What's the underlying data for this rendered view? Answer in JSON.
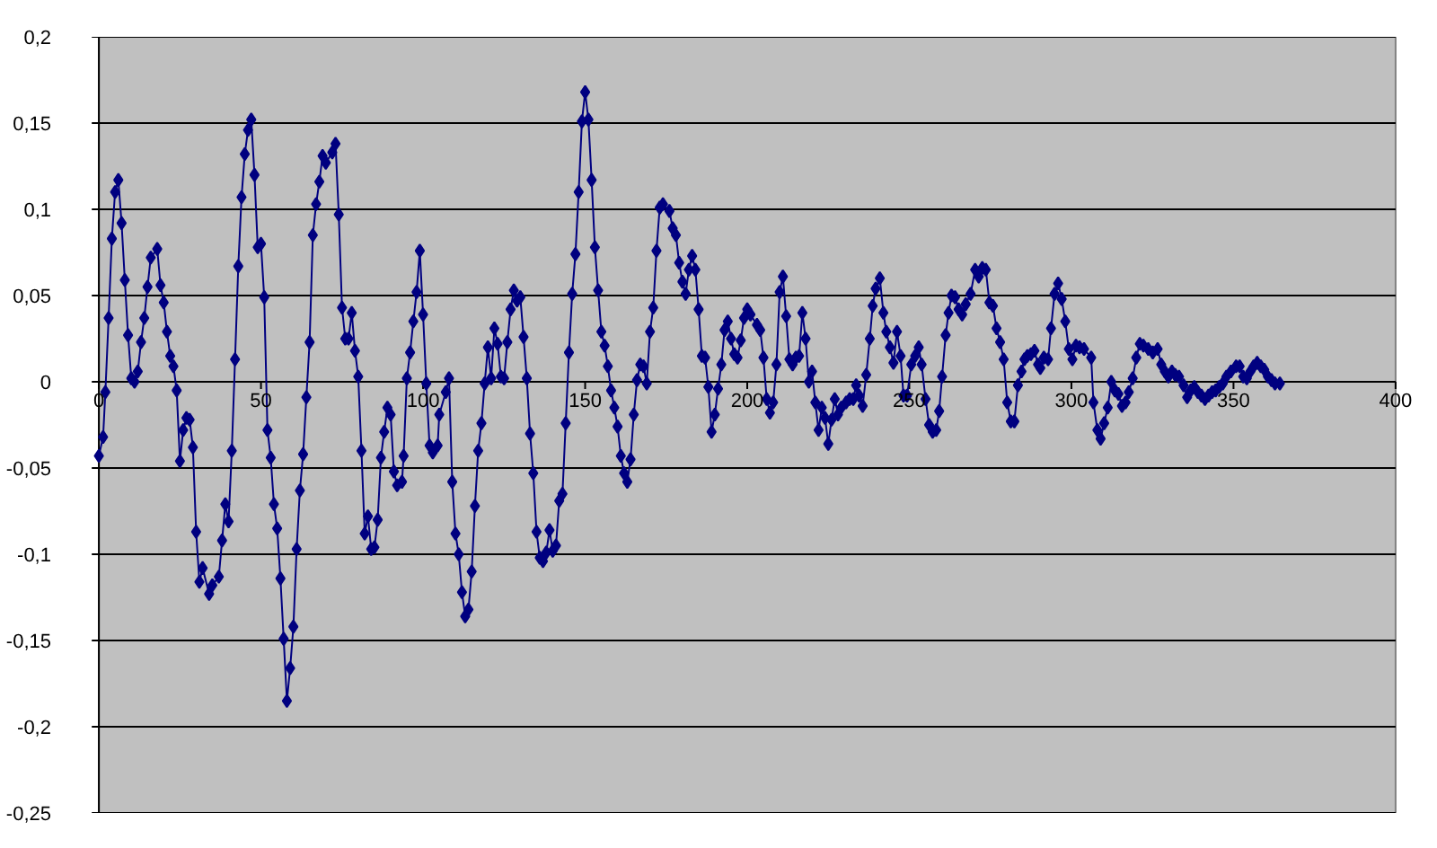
{
  "chart_data": {
    "type": "line",
    "marker": "diamond",
    "grid": "y",
    "xlim": [
      0,
      400
    ],
    "xticks": [
      0,
      50,
      100,
      150,
      200,
      250,
      300,
      350,
      400
    ],
    "ylim": [
      -0.25,
      0.2
    ],
    "yticks": [
      {
        "value": -0.25,
        "label": "-0,25"
      },
      {
        "value": -0.2,
        "label": "-0,2"
      },
      {
        "value": -0.15,
        "label": "-0,15"
      },
      {
        "value": -0.1,
        "label": "-0,1"
      },
      {
        "value": -0.05,
        "label": "-0,05"
      },
      {
        "value": 0,
        "label": "0"
      },
      {
        "value": 0.05,
        "label": "0,05"
      },
      {
        "value": 0.1,
        "label": "0,1"
      },
      {
        "value": 0.15,
        "label": "0,15"
      },
      {
        "value": 0.2,
        "label": "0,2"
      }
    ],
    "series": [
      {
        "color": "#000080",
        "x": [
          0,
          1.3,
          2,
          3,
          4,
          5,
          6,
          7,
          8,
          9,
          10,
          11,
          12,
          13,
          14,
          15,
          16,
          18,
          19,
          20,
          21,
          22,
          23,
          24,
          25,
          26,
          27,
          28,
          29,
          30,
          31,
          32,
          34,
          35,
          37,
          38,
          39,
          40,
          41,
          42,
          43,
          44,
          45,
          46,
          47,
          48,
          49,
          50,
          51,
          52,
          53,
          54,
          55,
          56,
          57,
          58,
          59,
          60,
          61,
          62,
          63,
          64,
          65,
          66,
          67,
          68,
          69,
          70,
          72,
          73,
          74,
          75,
          76,
          77,
          78,
          79,
          80,
          81,
          82,
          83,
          84,
          85,
          86,
          87,
          88,
          89,
          90,
          91,
          92,
          93.5,
          94,
          95,
          96,
          97,
          98,
          99,
          100,
          101,
          102,
          103,
          104.5,
          105,
          107,
          108,
          109,
          110,
          111,
          112,
          113,
          114,
          115,
          116,
          117,
          118,
          119,
          120,
          121,
          122,
          123,
          124,
          125,
          126,
          127,
          128,
          129,
          130,
          131,
          132,
          133,
          134,
          135,
          136,
          137,
          138,
          139,
          140,
          141,
          142,
          143,
          144,
          145,
          146,
          147,
          148,
          149,
          150,
          151,
          152,
          153,
          154,
          155,
          156,
          157,
          158,
          159,
          160,
          161,
          162,
          163,
          164,
          165,
          166,
          167,
          168,
          169,
          170,
          171,
          172,
          173,
          174,
          176,
          177,
          178,
          179,
          180,
          181,
          182,
          183,
          184,
          185,
          186,
          187,
          188,
          189,
          190,
          191,
          192,
          193,
          194,
          195,
          196,
          197,
          198,
          199,
          200,
          201,
          203,
          204,
          205,
          206,
          207,
          208,
          209,
          210,
          211,
          212,
          213,
          214,
          215,
          216,
          217,
          218,
          219,
          220,
          221,
          222,
          223,
          224,
          225,
          226,
          227,
          228,
          229,
          230.5,
          231.6,
          232.7,
          233.6,
          234.5,
          235.6,
          236.7,
          237.8,
          238.7,
          239.6,
          240.9,
          242,
          242.9,
          244,
          245.1,
          246.2,
          247.3,
          248.2,
          249.3,
          250.6,
          251.8,
          252.9,
          253.8,
          255,
          256.1,
          257.2,
          258.3,
          259.2,
          260.1,
          261.2,
          262.1,
          263,
          264.1,
          265.2,
          266.3,
          267.4,
          268.9,
          270.3,
          271.4,
          272.5,
          273.6,
          274.7,
          275.8,
          276.9,
          278,
          279.1,
          280.2,
          281.3,
          282.4,
          283.5,
          284.6,
          285.5,
          286.4,
          287.5,
          288.6,
          289.7,
          290.4,
          291.5,
          292.8,
          293.7,
          294.8,
          295.9,
          297,
          298.1,
          299.2,
          300.3,
          301.4,
          302.5,
          303.9,
          306.1,
          306.8,
          308,
          309,
          310.1,
          311.2,
          312.3,
          313.4,
          314.5,
          315.6,
          316.7,
          317.7,
          318.9,
          320,
          321.1,
          322.2,
          323.7,
          325.1,
          326.6,
          327.7,
          328.8,
          329.9,
          331,
          332,
          333.2,
          334.6,
          335.7,
          336.8,
          337.9,
          339,
          340.1,
          341.2,
          342.3,
          343.4,
          344.5,
          345.6,
          346.7,
          347.8,
          349.2,
          350.8,
          351.9,
          353,
          354.1,
          355.2,
          356.2,
          357.3,
          358.4,
          359.5,
          360.6,
          361.7,
          362.8,
          364.3
        ],
        "values": [
          -0.043,
          -0.032,
          -0.006,
          0.037,
          0.083,
          0.11,
          0.117,
          0.092,
          0.059,
          0.027,
          0.002,
          0.0,
          0.006,
          0.023,
          0.037,
          0.055,
          0.072,
          0.077,
          0.056,
          0.046,
          0.029,
          0.015,
          0.009,
          -0.005,
          -0.046,
          -0.028,
          -0.021,
          -0.022,
          -0.038,
          -0.087,
          -0.116,
          -0.108,
          -0.123,
          -0.118,
          -0.113,
          -0.092,
          -0.071,
          -0.081,
          -0.04,
          0.013,
          0.067,
          0.107,
          0.132,
          0.146,
          0.152,
          0.12,
          0.078,
          0.08,
          0.049,
          -0.028,
          -0.044,
          -0.071,
          -0.085,
          -0.114,
          -0.149,
          -0.185,
          -0.166,
          -0.142,
          -0.097,
          -0.063,
          -0.042,
          -0.009,
          0.023,
          0.085,
          0.103,
          0.116,
          0.131,
          0.127,
          0.133,
          0.138,
          0.097,
          0.043,
          0.025,
          0.025,
          0.04,
          0.018,
          0.003,
          -0.04,
          -0.088,
          -0.078,
          -0.097,
          -0.096,
          -0.08,
          -0.044,
          -0.029,
          -0.015,
          -0.019,
          -0.052,
          -0.06,
          -0.058,
          -0.043,
          0.002,
          0.017,
          0.035,
          0.052,
          0.076,
          0.039,
          -0.001,
          -0.037,
          -0.041,
          -0.037,
          -0.019,
          -0.006,
          0.002,
          -0.058,
          -0.088,
          -0.1,
          -0.122,
          -0.136,
          -0.132,
          -0.11,
          -0.072,
          -0.04,
          -0.024,
          -0.001,
          0.02,
          0.002,
          0.031,
          0.022,
          0.003,
          0.002,
          0.023,
          0.042,
          0.053,
          0.047,
          0.049,
          0.026,
          0.002,
          -0.03,
          -0.053,
          -0.087,
          -0.102,
          -0.104,
          -0.099,
          -0.086,
          -0.098,
          -0.095,
          -0.069,
          -0.065,
          -0.024,
          0.017,
          0.051,
          0.074,
          0.11,
          0.151,
          0.168,
          0.152,
          0.117,
          0.078,
          0.053,
          0.029,
          0.021,
          0.009,
          -0.005,
          -0.015,
          -0.026,
          -0.043,
          -0.053,
          -0.058,
          -0.045,
          -0.019,
          0.001,
          0.01,
          0.009,
          -0.001,
          0.029,
          0.043,
          0.076,
          0.101,
          0.103,
          0.099,
          0.089,
          0.085,
          0.069,
          0.058,
          0.051,
          0.065,
          0.073,
          0.065,
          0.042,
          0.015,
          0.014,
          -0.003,
          -0.029,
          -0.019,
          -0.004,
          0.01,
          0.03,
          0.035,
          0.025,
          0.016,
          0.014,
          0.024,
          0.037,
          0.042,
          0.039,
          0.033,
          0.03,
          0.014,
          -0.01,
          -0.018,
          -0.012,
          0.01,
          0.052,
          0.061,
          0.038,
          0.013,
          0.01,
          0.014,
          0.015,
          0.04,
          0.025,
          0.0,
          0.006,
          -0.012,
          -0.028,
          -0.015,
          -0.021,
          -0.036,
          -0.022,
          -0.01,
          -0.019,
          -0.015,
          -0.012,
          -0.01,
          -0.01,
          -0.002,
          -0.008,
          -0.014,
          0.004,
          0.025,
          0.044,
          0.054,
          0.06,
          0.04,
          0.029,
          0.02,
          0.011,
          0.029,
          0.015,
          -0.008,
          -0.008,
          0.01,
          0.015,
          0.02,
          0.01,
          -0.01,
          -0.025,
          -0.029,
          -0.028,
          -0.017,
          0.003,
          0.027,
          0.04,
          0.05,
          0.049,
          0.042,
          0.039,
          0.045,
          0.051,
          0.065,
          0.061,
          0.066,
          0.065,
          0.046,
          0.044,
          0.031,
          0.023,
          0.013,
          -0.012,
          -0.023,
          -0.023,
          -0.002,
          0.006,
          0.013,
          0.015,
          0.016,
          0.018,
          0.01,
          0.008,
          0.014,
          0.013,
          0.031,
          0.051,
          0.057,
          0.048,
          0.035,
          0.019,
          0.013,
          0.021,
          0.02,
          0.019,
          0.014,
          -0.012,
          -0.028,
          -0.033,
          -0.024,
          -0.015,
          0.0,
          -0.005,
          -0.007,
          -0.014,
          -0.012,
          -0.006,
          0.002,
          0.014,
          0.022,
          0.021,
          0.019,
          0.017,
          0.019,
          0.01,
          0.006,
          0.003,
          0.006,
          0.004,
          0.003,
          -0.002,
          -0.009,
          -0.005,
          -0.003,
          -0.006,
          -0.008,
          -0.01,
          -0.008,
          -0.006,
          -0.005,
          -0.003,
          -0.001,
          0.003,
          0.006,
          0.009,
          0.009,
          0.003,
          0.002,
          0.006,
          0.009,
          0.011,
          0.009,
          0.007,
          0.003,
          0.001,
          -0.001,
          -0.001
        ]
      }
    ]
  }
}
